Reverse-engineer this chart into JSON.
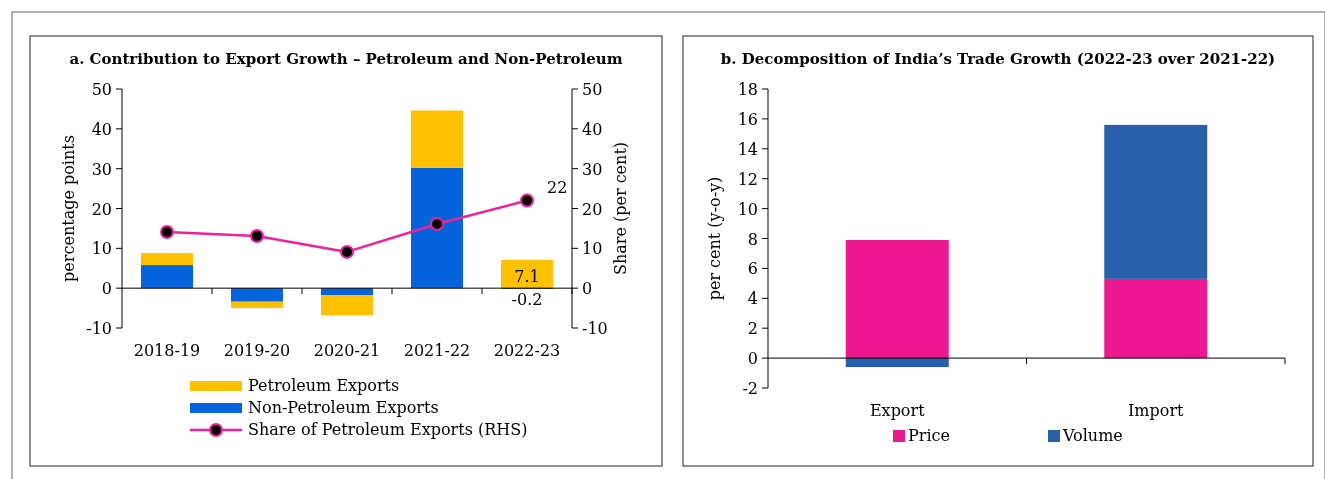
{
  "chart_data": [
    {
      "type": "bar",
      "title": "a. Contribution to Export Growth – Petroleum and Non-Petroleum",
      "ylabel": "percentage points",
      "y2label": "Share (per cent)",
      "categories": [
        "2018-19",
        "2019-20",
        "2020-21",
        "2021-22",
        "2022-23"
      ],
      "stacked": true,
      "series": [
        {
          "name": "Non-Petroleum Exports",
          "color": "#0563dc",
          "values": [
            5.8,
            -3.4,
            -1.8,
            30.2,
            -0.2
          ],
          "value_labels": [
            null,
            null,
            null,
            null,
            "-0.2"
          ]
        },
        {
          "name": "Petroleum Exports",
          "color": "#ffc000",
          "values": [
            3.0,
            -1.6,
            -5.0,
            14.4,
            7.1
          ],
          "value_labels": [
            null,
            null,
            null,
            null,
            "7.1"
          ]
        },
        {
          "name": "Share of Petroleum Exports (RHS)",
          "type": "line",
          "axis": "y2",
          "color": "#f0209a",
          "marker": "circle",
          "values": [
            14.1,
            13.1,
            9.1,
            16.1,
            22
          ],
          "value_labels": [
            null,
            null,
            null,
            null,
            "22"
          ]
        }
      ],
      "ylim": [
        -10,
        50
      ],
      "yticks": [
        -10,
        0,
        10,
        20,
        30,
        40,
        50
      ],
      "y2lim": [
        -10,
        50
      ],
      "y2ticks": [
        -10,
        0,
        10,
        20,
        30,
        40,
        50
      ],
      "legend": "bottom"
    },
    {
      "type": "bar",
      "title": "b. Decomposition of India’s Trade Growth (2022-23 over 2021-22)",
      "ylabel": "per cent (y-o-y)",
      "categories": [
        "Export",
        "Import"
      ],
      "stacked": true,
      "series": [
        {
          "name": "Price",
          "color": "#ed1891",
          "values": [
            7.9,
            5.3
          ]
        },
        {
          "name": "Volume",
          "color": "#2a60ab",
          "values": [
            -0.6,
            10.3
          ]
        }
      ],
      "ylim": [
        -2,
        18
      ],
      "yticks": [
        -2,
        0,
        2,
        4,
        6,
        8,
        10,
        12,
        14,
        16,
        18
      ],
      "legend": "bottom"
    }
  ]
}
